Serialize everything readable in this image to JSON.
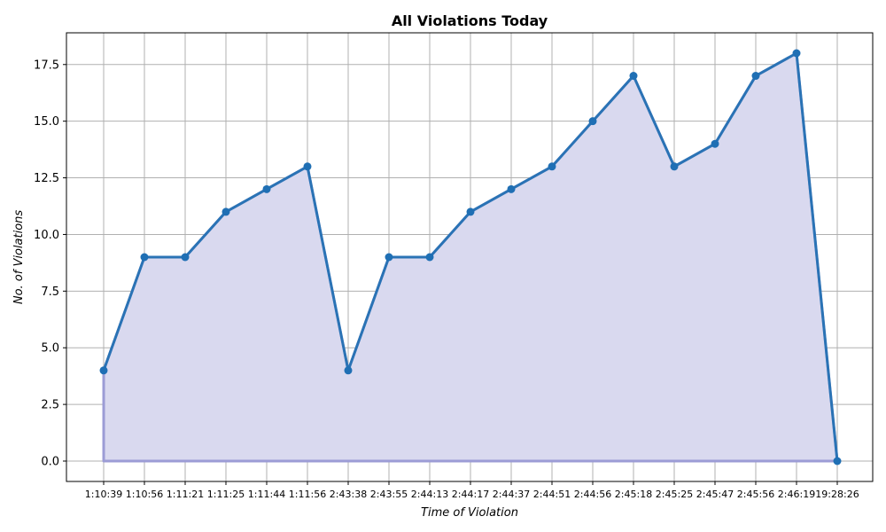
{
  "colors": {
    "line": "#2a73b5",
    "marker": "#1f6fb4",
    "fill": "#d9d9ef",
    "fill_edge": "#9c9cd6",
    "grid": "#b0b0b0"
  },
  "chart_data": {
    "type": "area",
    "title": "All Violations Today",
    "xlabel": "Time of Violation",
    "ylabel": "No. of Violations",
    "categories": [
      "1:10:39",
      "1:10:56",
      "1:11:21",
      "1:11:25",
      "1:11:44",
      "1:11:56",
      "2:43:38",
      "2:43:55",
      "2:44:13",
      "2:44:17",
      "2:44:37",
      "2:44:51",
      "2:44:56",
      "2:45:18",
      "2:45:25",
      "2:45:47",
      "2:45:56",
      "2:46:19",
      "19:28:26"
    ],
    "series": [
      {
        "values": [
          4,
          9,
          9,
          11,
          12,
          13,
          4,
          9,
          9,
          11,
          12,
          13,
          15,
          17,
          13,
          14,
          17,
          18,
          0
        ]
      }
    ],
    "ylim": [
      -0.9,
      18.9
    ],
    "yticks": [
      0.0,
      2.5,
      5.0,
      7.5,
      10.0,
      12.5,
      15.0,
      17.5
    ],
    "grid": true,
    "markers": true,
    "legend": false
  }
}
